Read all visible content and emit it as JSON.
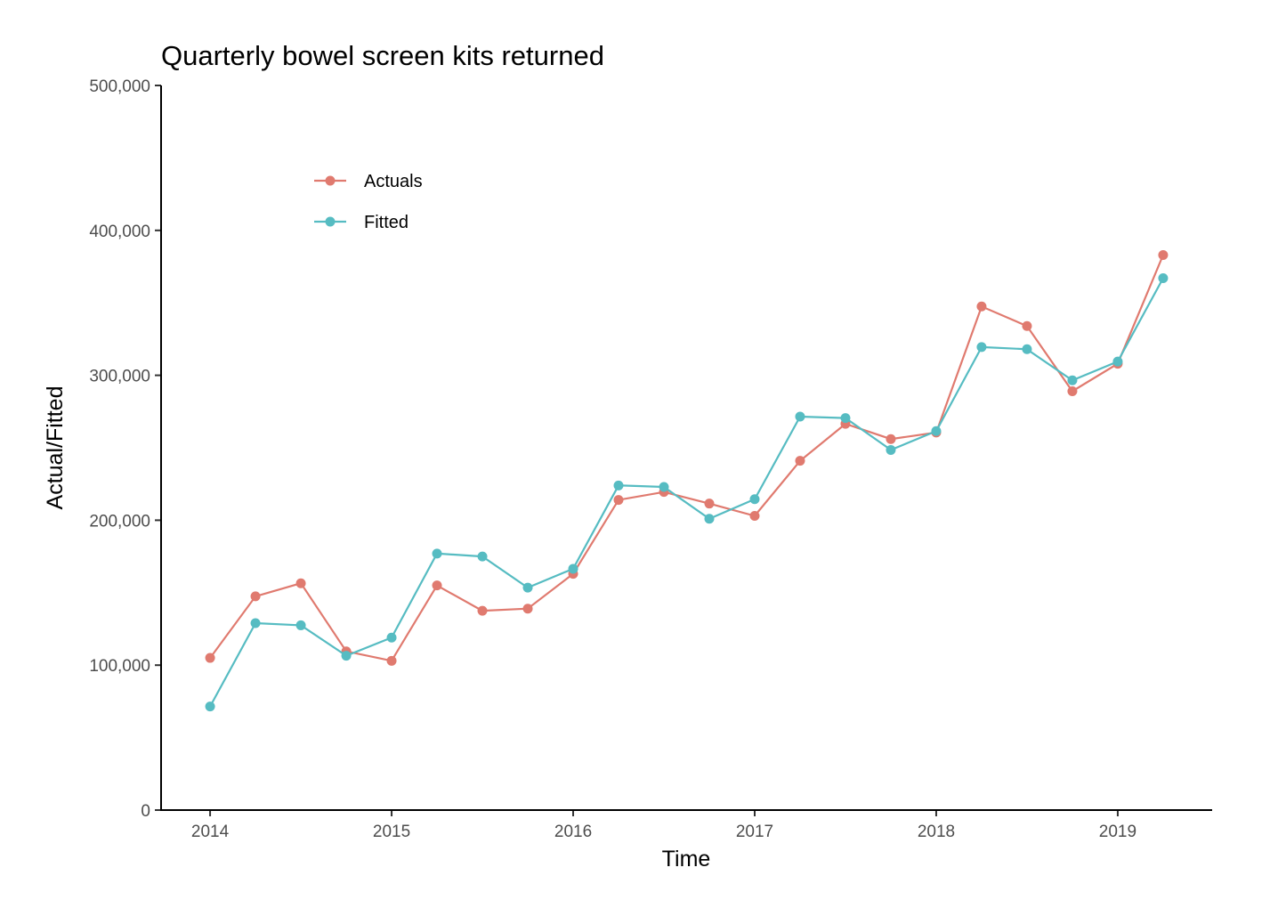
{
  "chart_data": {
    "type": "line",
    "title": "Quarterly bowel screen kits returned",
    "xlabel": "Time",
    "ylabel": "Actual/Fitted",
    "xlim": [
      2013.73,
      2019.52
    ],
    "ylim": [
      0,
      500000
    ],
    "x_ticks": [
      2014,
      2015,
      2016,
      2017,
      2018,
      2019
    ],
    "x_tick_labels": [
      "2014",
      "2015",
      "2016",
      "2017",
      "2018",
      "2019"
    ],
    "y_ticks": [
      0,
      100000,
      200000,
      300000,
      400000,
      500000
    ],
    "y_tick_labels": [
      "0",
      "100,000",
      "200,000",
      "300,000",
      "400,000",
      "500,000"
    ],
    "grid": false,
    "legend_position": "top-left-inside",
    "x": [
      2014.0,
      2014.25,
      2014.5,
      2014.75,
      2015.0,
      2015.25,
      2015.5,
      2015.75,
      2016.0,
      2016.25,
      2016.5,
      2016.75,
      2017.0,
      2017.25,
      2017.5,
      2017.75,
      2018.0,
      2018.25,
      2018.5,
      2018.75,
      2019.0,
      2019.25
    ],
    "series": [
      {
        "name": "Actuals",
        "color": "#E07A6F",
        "values": [
          105000,
          147500,
          156500,
          109500,
          103000,
          155000,
          137500,
          139000,
          163000,
          214000,
          219500,
          211500,
          203000,
          241000,
          266500,
          256000,
          260500,
          347500,
          334000,
          289000,
          308000,
          383000
        ]
      },
      {
        "name": "Fitted",
        "color": "#56BCC2",
        "values": [
          71500,
          129000,
          127500,
          106500,
          119000,
          177000,
          175000,
          153500,
          166500,
          224000,
          223000,
          201000,
          214500,
          271500,
          270500,
          248500,
          261500,
          319500,
          318000,
          296500,
          309500,
          367000
        ]
      }
    ]
  }
}
